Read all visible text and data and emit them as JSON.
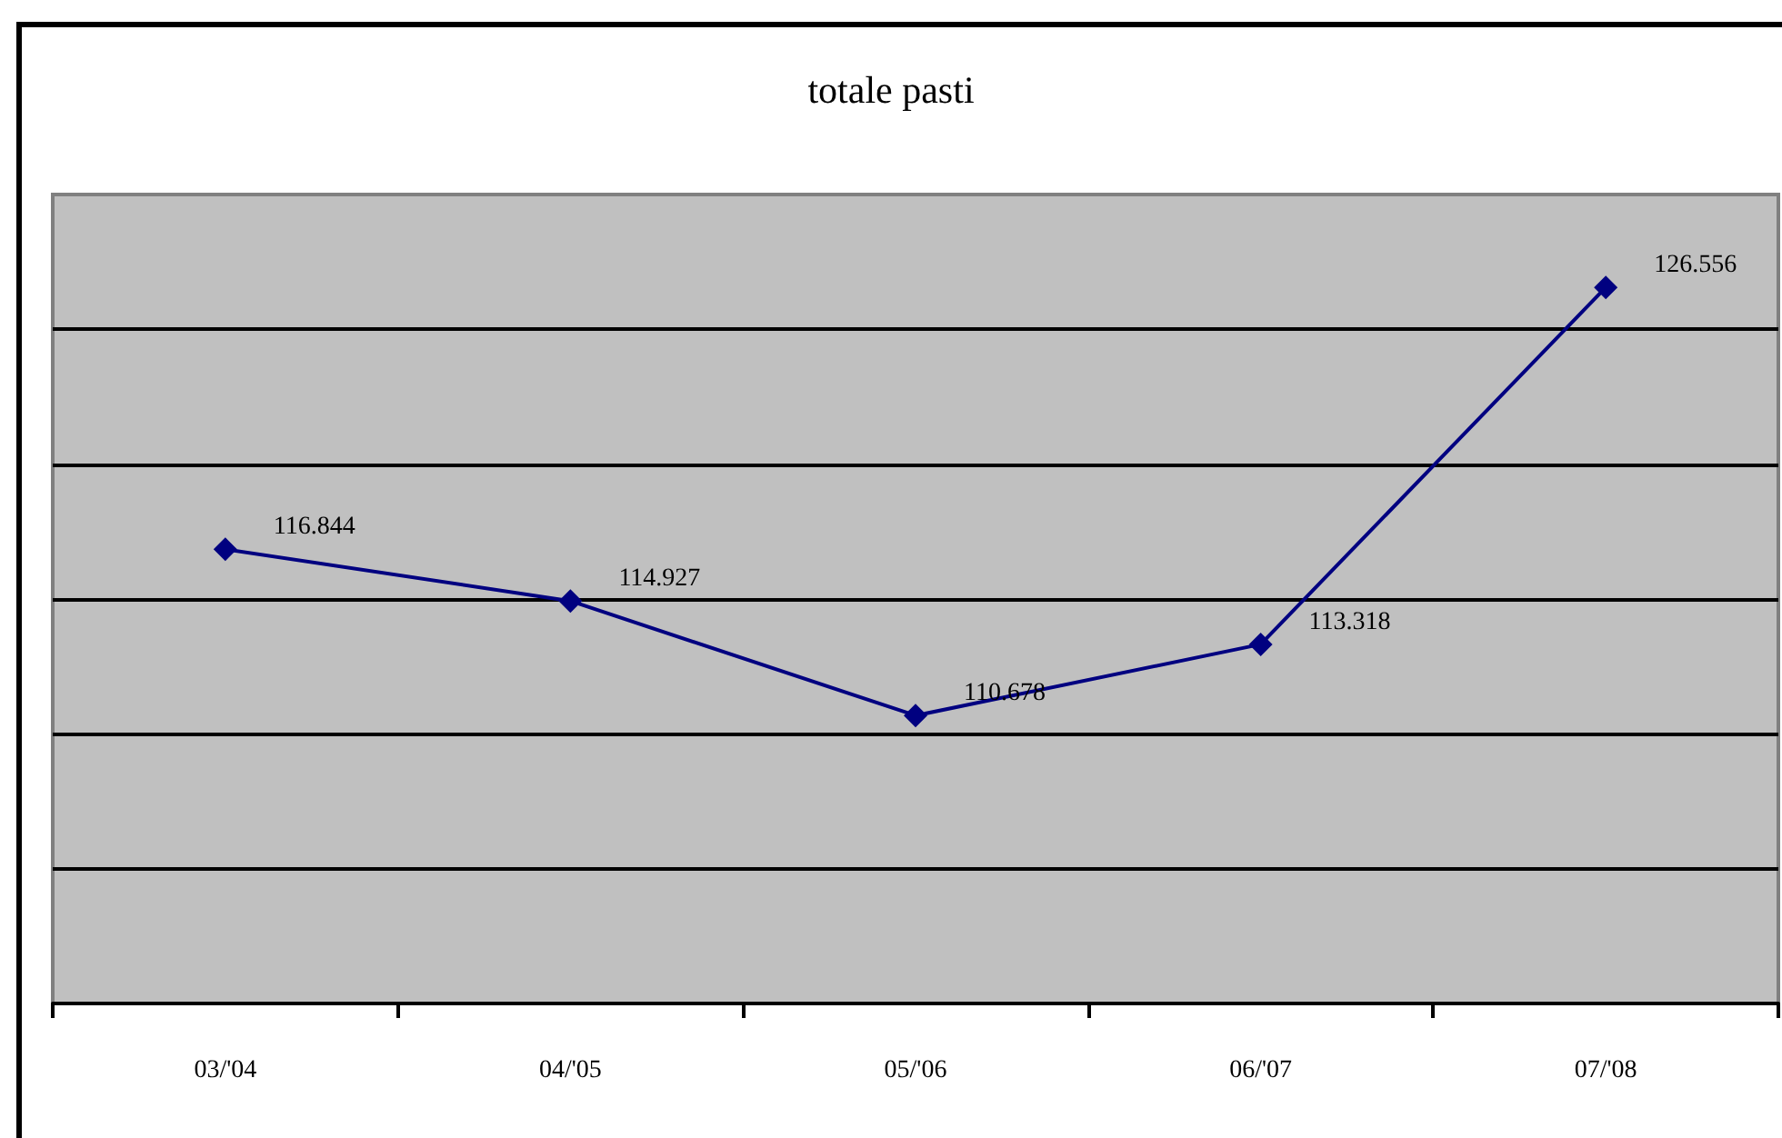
{
  "chart_data": {
    "type": "line",
    "title": "totale pasti",
    "categories": [
      "03/'04",
      "04/'05",
      "05/'06",
      "06/'07",
      "07/'08"
    ],
    "series": [
      {
        "color": "#000080",
        "values": [
          116844,
          114927,
          110678,
          113318,
          126556
        ],
        "value_labels": [
          "116.844",
          "114.927",
          "110.678",
          "113.318",
          "126.556"
        ]
      }
    ],
    "ylim": [
      100000,
      130000
    ],
    "yticks": [
      {
        "value": 105000,
        "label": null
      },
      {
        "value": 110000,
        "label": null
      },
      {
        "value": 115000,
        "label": null
      },
      {
        "value": 120000,
        "label": null
      },
      {
        "value": 125000,
        "label": null
      }
    ],
    "grid": "y",
    "tick_labels": "x",
    "marker": "diamond",
    "line_style": "solid"
  }
}
